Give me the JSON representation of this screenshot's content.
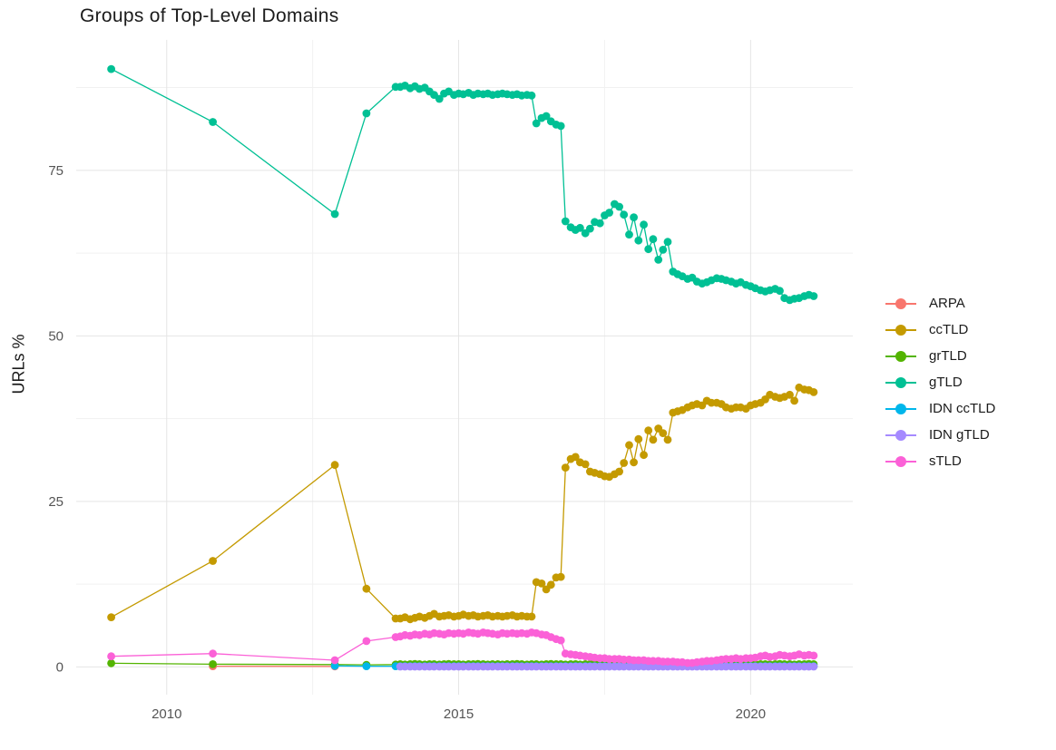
{
  "title": "Groups of Top-Level Domains",
  "style": {
    "background": "#ffffff",
    "grid_major_color": "#e5e5e5",
    "grid_minor_color": "#f1f1f1",
    "tick_label_color": "#555555",
    "text_color": "#1b1b1b"
  },
  "chart_data": {
    "type": "line",
    "title": "Groups of Top-Level Domains",
    "xlabel": "",
    "ylabel": "URLs %",
    "legend_position": "right",
    "grid": true,
    "xlim": [
      2008.45,
      2021.75
    ],
    "ylim": [
      -4.2,
      94.7
    ],
    "x_ticks": {
      "values": [
        2010,
        2015,
        2020
      ],
      "labels": [
        "2010",
        "2015",
        "2020"
      ]
    },
    "x_minor": [
      2012.5,
      2017.5
    ],
    "y_ticks": {
      "values": [
        0,
        25,
        50,
        75
      ],
      "labels": [
        "0",
        "25",
        "50",
        "75"
      ]
    },
    "y_minor": [
      12.5,
      37.5,
      62.5,
      87.5
    ],
    "x_dense": [
      2014.0,
      2014.08,
      2014.17,
      2014.25,
      2014.33,
      2014.42,
      2014.5,
      2014.58,
      2014.67,
      2014.75,
      2014.83,
      2014.92,
      2015.0,
      2015.08,
      2015.17,
      2015.25,
      2015.33,
      2015.42,
      2015.5,
      2015.58,
      2015.67,
      2015.75,
      2015.83,
      2015.92,
      2016.0,
      2016.08,
      2016.17,
      2016.25,
      2016.33,
      2016.42,
      2016.5,
      2016.58,
      2016.67,
      2016.75,
      2016.83,
      2016.92,
      2017.0,
      2017.08,
      2017.17,
      2017.25,
      2017.33,
      2017.42,
      2017.5,
      2017.58,
      2017.67,
      2017.75,
      2017.83,
      2017.92,
      2018.0,
      2018.08,
      2018.17,
      2018.25,
      2018.33,
      2018.42,
      2018.5,
      2018.58,
      2018.67,
      2018.75,
      2018.83,
      2018.92,
      2019.0,
      2019.08,
      2019.17,
      2019.25,
      2019.33,
      2019.42,
      2019.5,
      2019.58,
      2019.67,
      2019.75,
      2019.83,
      2019.92,
      2020.0,
      2020.08,
      2020.17,
      2020.25,
      2020.33,
      2020.42,
      2020.5,
      2020.58,
      2020.67,
      2020.75,
      2020.83,
      2020.92,
      2021.0,
      2021.08
    ],
    "series": [
      {
        "name": "ARPA",
        "color": "#F8766D",
        "early": [
          [
            2010.79,
            0.1
          ],
          [
            2012.88,
            0.08
          ]
        ]
      },
      {
        "name": "ccTLD",
        "color": "#C49A00",
        "early": [
          [
            2009.05,
            7.5
          ],
          [
            2010.79,
            16.0
          ],
          [
            2012.88,
            30.5
          ],
          [
            2013.42,
            11.8
          ],
          [
            2013.92,
            7.3
          ]
        ],
        "dense": [
          7.3,
          7.5,
          7.2,
          7.4,
          7.6,
          7.4,
          7.7,
          8.0,
          7.6,
          7.7,
          7.8,
          7.6,
          7.7,
          7.9,
          7.7,
          7.8,
          7.6,
          7.7,
          7.8,
          7.6,
          7.7,
          7.6,
          7.7,
          7.8,
          7.6,
          7.7,
          7.6,
          7.6,
          12.8,
          12.6,
          11.7,
          12.4,
          13.5,
          13.6,
          30.1,
          31.4,
          31.7,
          30.9,
          30.6,
          29.5,
          29.3,
          29.1,
          28.8,
          28.7,
          29.1,
          29.5,
          30.8,
          33.5,
          30.9,
          34.4,
          32.0,
          35.7,
          34.3,
          36.0,
          35.3,
          34.3,
          38.4,
          38.6,
          38.8,
          39.2,
          39.5,
          39.7,
          39.5,
          40.2,
          39.9,
          39.9,
          39.7,
          39.2,
          39.0,
          39.2,
          39.2,
          39.0,
          39.5,
          39.7,
          39.9,
          40.4,
          41.1,
          40.8,
          40.6,
          40.8,
          41.1,
          40.2,
          42.2,
          41.9,
          41.8,
          41.5
        ]
      },
      {
        "name": "grTLD",
        "color": "#53B400",
        "early": [
          [
            2009.05,
            0.55
          ],
          [
            2010.79,
            0.4
          ],
          [
            2012.88,
            0.35
          ],
          [
            2013.42,
            0.3
          ],
          [
            2013.92,
            0.35
          ]
        ],
        "dense": [
          0.4,
          0.35,
          0.4,
          0.45,
          0.4,
          0.35,
          0.4,
          0.4,
          0.35,
          0.4,
          0.45,
          0.4,
          0.4,
          0.35,
          0.4,
          0.4,
          0.45,
          0.4,
          0.35,
          0.4,
          0.4,
          0.35,
          0.4,
          0.4,
          0.45,
          0.4,
          0.35,
          0.4,
          0.4,
          0.35,
          0.4,
          0.45,
          0.4,
          0.4,
          0.35,
          0.4,
          0.4,
          0.35,
          0.4,
          0.4,
          0.45,
          0.4,
          0.4,
          0.35,
          0.4,
          0.45,
          0.4,
          0.4,
          0.35,
          0.4,
          0.4,
          0.45,
          0.4,
          0.35,
          0.4,
          0.4,
          0.45,
          0.4,
          0.4,
          0.35,
          0.4,
          0.4,
          0.45,
          0.4,
          0.35,
          0.4,
          0.4,
          0.45,
          0.4,
          0.4,
          0.35,
          0.4,
          0.4,
          0.45,
          0.4,
          0.4,
          0.35,
          0.4,
          0.45,
          0.4,
          0.4,
          0.35,
          0.4,
          0.4,
          0.45,
          0.4
        ]
      },
      {
        "name": "gTLD",
        "color": "#00C094",
        "early": [
          [
            2009.05,
            90.3
          ],
          [
            2010.79,
            82.3
          ],
          [
            2012.88,
            68.4
          ],
          [
            2013.42,
            83.6
          ],
          [
            2013.92,
            87.6
          ]
        ],
        "dense": [
          87.6,
          87.8,
          87.4,
          87.7,
          87.3,
          87.5,
          86.9,
          86.4,
          85.8,
          86.6,
          86.9,
          86.4,
          86.6,
          86.5,
          86.7,
          86.4,
          86.6,
          86.5,
          86.6,
          86.4,
          86.5,
          86.6,
          86.5,
          86.4,
          86.5,
          86.3,
          86.4,
          86.3,
          82.1,
          82.9,
          83.2,
          82.4,
          81.9,
          81.7,
          67.3,
          66.4,
          66.0,
          66.3,
          65.5,
          66.2,
          67.2,
          67.0,
          68.2,
          68.6,
          69.9,
          69.5,
          68.3,
          65.3,
          67.9,
          64.4,
          66.8,
          63.1,
          64.6,
          61.5,
          63.0,
          64.2,
          59.7,
          59.3,
          59.0,
          58.6,
          58.8,
          58.2,
          57.9,
          58.1,
          58.4,
          58.7,
          58.6,
          58.4,
          58.2,
          57.9,
          58.1,
          57.7,
          57.5,
          57.2,
          56.9,
          56.7,
          56.9,
          57.1,
          56.8,
          55.7,
          55.4,
          55.6,
          55.7,
          56.0,
          56.2,
          56.0
        ]
      },
      {
        "name": "IDN ccTLD",
        "color": "#00B6EB",
        "early": [
          [
            2012.88,
            0.15
          ],
          [
            2013.42,
            0.1
          ],
          [
            2013.92,
            0.1
          ]
        ],
        "dense_fill": 0.1
      },
      {
        "name": "IDN gTLD",
        "color": "#A58AFF",
        "early": [],
        "dense_fill": 0.05
      },
      {
        "name": "sTLD",
        "color": "#FB61D7",
        "early": [
          [
            2009.05,
            1.6
          ],
          [
            2010.79,
            2.0
          ],
          [
            2012.88,
            1.0
          ],
          [
            2013.42,
            3.9
          ],
          [
            2013.92,
            4.5
          ]
        ],
        "dense": [
          4.6,
          4.8,
          4.7,
          4.9,
          4.8,
          5.0,
          4.9,
          5.1,
          5.0,
          4.9,
          5.1,
          5.0,
          5.1,
          5.0,
          5.2,
          5.1,
          5.0,
          5.2,
          5.1,
          5.0,
          4.9,
          5.1,
          5.0,
          5.1,
          5.0,
          5.1,
          5.0,
          5.2,
          5.1,
          4.9,
          4.8,
          4.5,
          4.2,
          4.0,
          2.0,
          1.9,
          1.8,
          1.7,
          1.6,
          1.5,
          1.4,
          1.3,
          1.3,
          1.2,
          1.2,
          1.2,
          1.1,
          1.1,
          1.0,
          1.0,
          1.0,
          0.9,
          0.9,
          0.9,
          0.8,
          0.8,
          0.8,
          0.7,
          0.7,
          0.6,
          0.6,
          0.7,
          0.8,
          0.9,
          0.9,
          1.0,
          1.1,
          1.2,
          1.2,
          1.3,
          1.2,
          1.3,
          1.3,
          1.4,
          1.6,
          1.7,
          1.5,
          1.6,
          1.8,
          1.7,
          1.6,
          1.7,
          1.9,
          1.7,
          1.8,
          1.7
        ]
      }
    ]
  }
}
